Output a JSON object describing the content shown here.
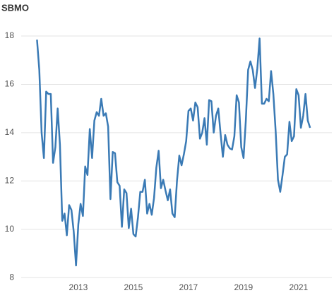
{
  "chart_data": {
    "type": "line",
    "title": "SBMO",
    "x": [
      2011.5,
      2011.583,
      2011.667,
      2011.75,
      2011.833,
      2011.917,
      2012,
      2012.083,
      2012.167,
      2012.25,
      2012.333,
      2012.417,
      2012.5,
      2012.583,
      2012.667,
      2012.75,
      2012.833,
      2012.917,
      2013,
      2013.083,
      2013.167,
      2013.25,
      2013.333,
      2013.417,
      2013.5,
      2013.583,
      2013.667,
      2013.75,
      2013.833,
      2013.917,
      2014,
      2014.083,
      2014.167,
      2014.25,
      2014.333,
      2014.417,
      2014.5,
      2014.583,
      2014.667,
      2014.75,
      2014.833,
      2014.917,
      2015,
      2015.083,
      2015.167,
      2015.25,
      2015.333,
      2015.417,
      2015.5,
      2015.583,
      2015.667,
      2015.75,
      2015.833,
      2015.917,
      2016,
      2016.083,
      2016.167,
      2016.25,
      2016.333,
      2016.417,
      2016.5,
      2016.583,
      2016.667,
      2016.75,
      2016.833,
      2016.917,
      2017,
      2017.083,
      2017.167,
      2017.25,
      2017.333,
      2017.417,
      2017.5,
      2017.583,
      2017.667,
      2017.75,
      2017.833,
      2017.917,
      2018,
      2018.083,
      2018.167,
      2018.25,
      2018.333,
      2018.417,
      2018.5,
      2018.583,
      2018.667,
      2018.75,
      2018.833,
      2018.917,
      2019,
      2019.083,
      2019.167,
      2019.25,
      2019.333,
      2019.417,
      2019.5,
      2019.583,
      2019.667,
      2019.75,
      2019.833,
      2019.917,
      2020,
      2020.083,
      2020.167,
      2020.25,
      2020.333,
      2020.417,
      2020.5,
      2020.583,
      2020.667,
      2020.75,
      2020.833,
      2020.917,
      2021,
      2021.083,
      2021.167,
      2021.25,
      2021.333,
      2021.417
    ],
    "series": [
      {
        "name": "SBMO",
        "color": "#3a7ab5",
        "values": [
          17.85,
          16.6,
          14.0,
          12.95,
          15.7,
          15.6,
          15.6,
          12.75,
          13.4,
          15.0,
          13.5,
          10.35,
          10.65,
          9.75,
          11.0,
          10.8,
          9.9,
          8.5,
          10.2,
          11.05,
          10.55,
          12.6,
          12.25,
          14.15,
          12.95,
          14.5,
          14.85,
          14.7,
          15.4,
          14.7,
          14.8,
          14.25,
          11.25,
          13.2,
          13.15,
          11.95,
          11.8,
          10.1,
          11.65,
          11.5,
          10.05,
          10.85,
          9.8,
          9.7,
          10.5,
          11.55,
          11.55,
          12.05,
          10.65,
          11.05,
          10.6,
          11.3,
          12.55,
          13.25,
          11.7,
          12.05,
          11.6,
          11.2,
          11.65,
          10.65,
          10.5,
          12.0,
          13.05,
          12.65,
          13.1,
          13.65,
          14.9,
          15.0,
          14.5,
          15.25,
          15.05,
          13.75,
          14.0,
          14.6,
          13.5,
          15.35,
          15.3,
          14.0,
          14.7,
          15.0,
          13.95,
          13.0,
          13.9,
          13.5,
          13.35,
          13.3,
          13.85,
          15.55,
          15.25,
          13.4,
          12.95,
          14.5,
          16.6,
          16.95,
          16.6,
          15.85,
          16.65,
          17.9,
          15.2,
          15.2,
          15.4,
          15.3,
          16.55,
          15.6,
          14.05,
          12.05,
          11.55,
          12.25,
          13.0,
          13.1,
          14.45,
          13.65,
          13.85,
          15.8,
          15.55,
          14.2,
          14.7,
          15.6,
          14.5,
          14.2
        ]
      }
    ],
    "xlim": [
      2011.31,
      2022.08
    ],
    "xticks": [
      2013,
      2015,
      2017,
      2019,
      2021
    ],
    "ylim": [
      7.8,
      18.6
    ],
    "yticks": [
      8,
      10,
      12,
      14,
      16,
      18
    ],
    "grid": true
  }
}
